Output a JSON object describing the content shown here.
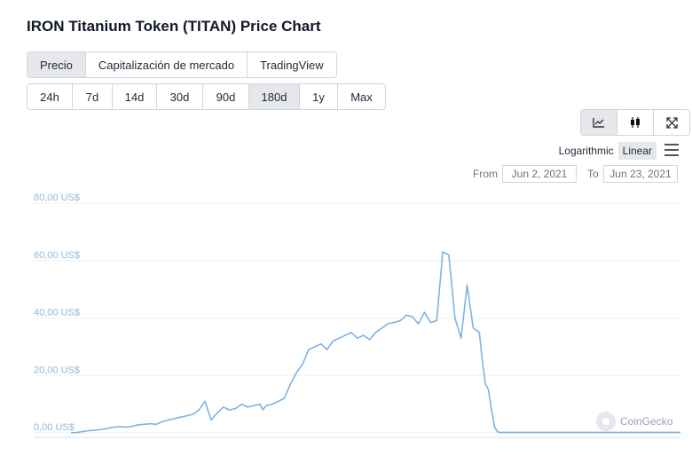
{
  "page": {
    "title": "IRON Titanium Token (TITAN) Price Chart"
  },
  "tabs": [
    {
      "label": "Precio",
      "active": true
    },
    {
      "label": "Capitalización de mercado",
      "active": false
    },
    {
      "label": "TradingView",
      "active": false
    }
  ],
  "ranges": [
    {
      "label": "24h",
      "active": false
    },
    {
      "label": "7d",
      "active": false
    },
    {
      "label": "14d",
      "active": false
    },
    {
      "label": "30d",
      "active": false
    },
    {
      "label": "90d",
      "active": false
    },
    {
      "label": "180d",
      "active": true
    },
    {
      "label": "1y",
      "active": false
    },
    {
      "label": "Max",
      "active": false
    }
  ],
  "tools": [
    {
      "icon": "line-chart-icon",
      "active": true
    },
    {
      "icon": "candlestick-icon",
      "active": false
    },
    {
      "icon": "fullscreen-icon",
      "active": false
    }
  ],
  "scale": {
    "log_label": "Logarithmic",
    "linear_label": "Linear",
    "selected": "Linear"
  },
  "date_range": {
    "from_label": "From",
    "from_value": "Jun 2, 2021",
    "to_label": "To",
    "to_value": "Jun 23, 2021"
  },
  "watermark": "CoinGecko",
  "colors": {
    "line": "#7fb3e0",
    "grid": "#eef1f4",
    "ytick": "#8fb8dc"
  },
  "chart_data": {
    "type": "line",
    "title": "",
    "xlabel": "",
    "ylabel": "",
    "ylim": [
      0,
      80
    ],
    "yticks": [
      0,
      20,
      40,
      60,
      80
    ],
    "ytick_labels": [
      "0,00 US$",
      "20,00 US$",
      "40,00 US$",
      "60,00 US$",
      "80,00 US$"
    ],
    "grid": true,
    "legend": "none",
    "series": [
      {
        "x": [
          0,
          0.01,
          0.02,
          0.03,
          0.04,
          0.05,
          0.06,
          0.07,
          0.08,
          0.09,
          0.1,
          0.11,
          0.12,
          0.13,
          0.14,
          0.15,
          0.16,
          0.17,
          0.18,
          0.19,
          0.2,
          0.21,
          0.22,
          0.23,
          0.24,
          0.25,
          0.26,
          0.27,
          0.28,
          0.29,
          0.3,
          0.31,
          0.315,
          0.32,
          0.33,
          0.34,
          0.35,
          0.36,
          0.37,
          0.38,
          0.39,
          0.4,
          0.41,
          0.42,
          0.43,
          0.44,
          0.45,
          0.46,
          0.47,
          0.48,
          0.49,
          0.5,
          0.51,
          0.52,
          0.53,
          0.54,
          0.55,
          0.56,
          0.57,
          0.58,
          0.59,
          0.6,
          0.61,
          0.62,
          0.63,
          0.64,
          0.65,
          0.66,
          0.67,
          0.675,
          0.68,
          0.685,
          0.69,
          0.695,
          0.7,
          0.703,
          0.706,
          0.71,
          0.713,
          0.716,
          0.72,
          0.725,
          0.73,
          0.735,
          0.74,
          0.745,
          0.75,
          0.755,
          0.76,
          0.8,
          0.85,
          0.9,
          0.95,
          1.0
        ],
        "y": [
          0,
          0.2,
          0.5,
          0.8,
          1.0,
          1.2,
          1.6,
          2.0,
          2.2,
          2.0,
          2.3,
          2.8,
          3.0,
          3.2,
          3.0,
          4.0,
          4.5,
          5.0,
          5.5,
          6.0,
          6.5,
          8.0,
          11.0,
          4.5,
          7.0,
          9.0,
          8.0,
          8.5,
          10.0,
          9.0,
          9.5,
          10.0,
          8.0,
          9.5,
          10.0,
          11.0,
          12.0,
          17.0,
          21.0,
          24.0,
          29.0,
          30.0,
          31.0,
          29.0,
          32.0,
          33.0,
          34.0,
          35.0,
          33.0,
          34.0,
          32.5,
          35.0,
          36.5,
          38.0,
          38.5,
          39.0,
          41.0,
          40.5,
          38.0,
          42.0,
          38.5,
          39.0,
          63.0,
          62.0,
          40.0,
          33.0,
          51.5,
          36.5,
          35.0,
          25.0,
          17.0,
          15.0,
          8.0,
          2.0,
          0.4,
          0.2,
          0.2,
          0.2,
          0.2,
          0.2,
          0.2,
          0.2,
          0.2,
          0.2,
          0.2,
          0.2,
          0.2,
          0.2,
          0.2,
          0.2,
          0.2,
          0.2,
          0.2,
          0.2
        ]
      }
    ]
  }
}
